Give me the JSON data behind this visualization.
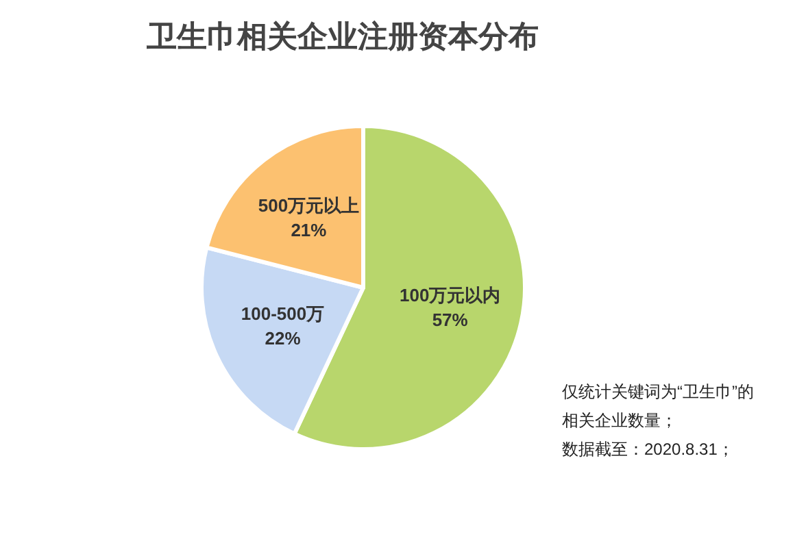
{
  "chart_data": {
    "type": "pie",
    "title": "卫生巾相关企业注册资本分布",
    "categories": [
      "100万元以内",
      "100-500万",
      "500万元以上"
    ],
    "values": [
      57,
      22,
      21
    ],
    "colors": [
      "#b8d66c",
      "#c6d9f4",
      "#fcc170"
    ],
    "value_labels": [
      "57%",
      "22%",
      "21%"
    ],
    "annotations": [
      "仅统计关键词为“卫生巾”的相关企业数量；",
      "数据截至：2020.8.31；"
    ]
  }
}
